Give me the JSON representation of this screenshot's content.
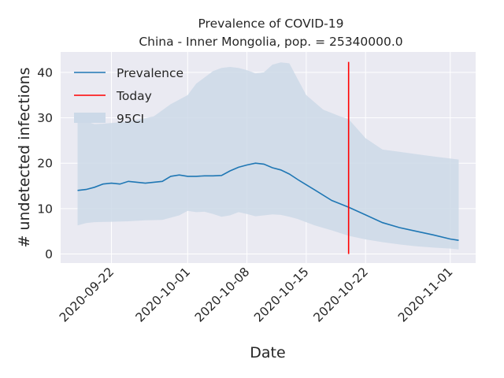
{
  "chart_data": {
    "type": "line",
    "title_line1": "Prevalence of COVID-19",
    "title_line2": "China - Inner Mongolia, pop. = 25340000.0",
    "xlabel": "Date",
    "ylabel": "# undetected infections",
    "x_ticks": [
      "2020-09-22",
      "2020-10-01",
      "2020-10-08",
      "2020-10-15",
      "2020-10-22",
      "2020-11-01"
    ],
    "y_ticks": [
      "0",
      "10",
      "20",
      "30",
      "40"
    ],
    "x_range": [
      "2020-09-16",
      "2020-11-04"
    ],
    "y_range": [
      -2,
      44.5
    ],
    "today": "2020-10-20",
    "today_range": [
      0,
      42.3
    ],
    "legend": [
      "Prevalence",
      "Today",
      "95CI"
    ],
    "legend_position": "upper-left",
    "colors": {
      "prevalence": "#1f77b4",
      "today": "#ff0000",
      "ci": "#ccd9e8",
      "plot_background": "#eaeaf2"
    },
    "series": [
      {
        "name": "Prevalence",
        "x": [
          "2020-09-18",
          "2020-09-19",
          "2020-09-20",
          "2020-09-21",
          "2020-09-22",
          "2020-09-23",
          "2020-09-24",
          "2020-09-25",
          "2020-09-26",
          "2020-09-27",
          "2020-09-28",
          "2020-09-29",
          "2020-09-30",
          "2020-10-01",
          "2020-10-02",
          "2020-10-03",
          "2020-10-04",
          "2020-10-05",
          "2020-10-06",
          "2020-10-07",
          "2020-10-08",
          "2020-10-09",
          "2020-10-10",
          "2020-10-11",
          "2020-10-12",
          "2020-10-13",
          "2020-10-14",
          "2020-10-16",
          "2020-10-18",
          "2020-10-20",
          "2020-10-22",
          "2020-10-24",
          "2020-10-26",
          "2020-10-28",
          "2020-10-30",
          "2020-11-01",
          "2020-11-02"
        ],
        "y": [
          14.0,
          14.2,
          14.7,
          15.4,
          15.6,
          15.4,
          16.0,
          15.8,
          15.6,
          15.8,
          16.0,
          17.1,
          17.4,
          17.1,
          17.1,
          17.2,
          17.2,
          17.3,
          18.3,
          19.1,
          19.6,
          20.0,
          19.8,
          19.0,
          18.5,
          17.6,
          16.4,
          14.1,
          11.8,
          10.3,
          8.6,
          6.9,
          5.8,
          5.0,
          4.2,
          3.3,
          3.0
        ]
      }
    ],
    "ci_upper_x": [
      "2020-09-18",
      "2020-09-19",
      "2020-09-20",
      "2020-09-21",
      "2020-09-23",
      "2020-09-25",
      "2020-09-27",
      "2020-09-29",
      "2020-10-01",
      "2020-10-02",
      "2020-10-04",
      "2020-10-05",
      "2020-10-06",
      "2020-10-07",
      "2020-10-08",
      "2020-10-09",
      "2020-10-10",
      "2020-10-11",
      "2020-10-12",
      "2020-10-13",
      "2020-10-14",
      "2020-10-15",
      "2020-10-17",
      "2020-10-19",
      "2020-10-20",
      "2020-10-22",
      "2020-10-24",
      "2020-10-26",
      "2020-10-28",
      "2020-10-30",
      "2020-11-02"
    ],
    "ci_upper_y": [
      29.0,
      29.2,
      28.6,
      28.7,
      29.0,
      29.5,
      30.3,
      33.0,
      35.0,
      37.5,
      40.3,
      41.0,
      41.2,
      41.0,
      40.5,
      39.8,
      40.0,
      41.7,
      42.2,
      42.0,
      38.5,
      35.0,
      31.8,
      30.3,
      29.7,
      25.5,
      23.0,
      22.5,
      22.0,
      21.5,
      20.8
    ],
    "ci_lower_x": [
      "2020-09-18",
      "2020-09-19",
      "2020-09-20",
      "2020-09-22",
      "2020-09-24",
      "2020-09-26",
      "2020-09-28",
      "2020-09-30",
      "2020-10-01",
      "2020-10-02",
      "2020-10-03",
      "2020-10-04",
      "2020-10-05",
      "2020-10-06",
      "2020-10-07",
      "2020-10-08",
      "2020-10-09",
      "2020-10-10",
      "2020-10-11",
      "2020-10-12",
      "2020-10-13",
      "2020-10-14",
      "2020-10-16",
      "2020-10-18",
      "2020-10-20",
      "2020-10-22",
      "2020-10-24",
      "2020-10-26",
      "2020-10-28",
      "2020-10-30",
      "2020-11-01",
      "2020-11-02"
    ],
    "ci_lower_y": [
      6.3,
      6.8,
      7.0,
      7.1,
      7.2,
      7.4,
      7.5,
      8.5,
      9.5,
      9.2,
      9.3,
      8.8,
      8.2,
      8.5,
      9.2,
      8.8,
      8.3,
      8.5,
      8.7,
      8.6,
      8.2,
      7.7,
      6.3,
      5.2,
      4.0,
      3.2,
      2.6,
      2.1,
      1.7,
      1.4,
      1.2,
      1.0
    ]
  }
}
